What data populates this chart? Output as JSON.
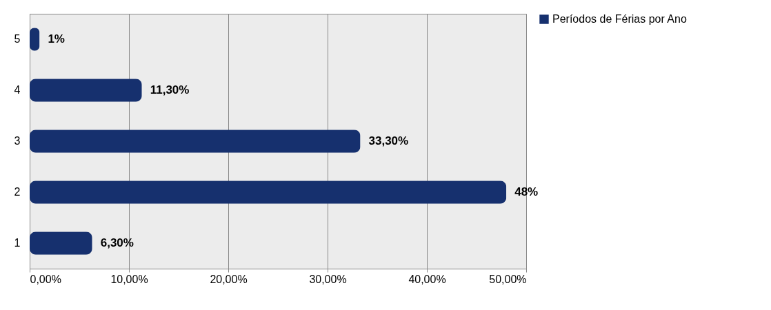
{
  "chart_data": {
    "type": "bar",
    "orientation": "horizontal",
    "categories": [
      "5",
      "4",
      "3",
      "2",
      "1"
    ],
    "series": [
      {
        "name": "Períodos de Férias por Ano",
        "color": "#16306e",
        "values": [
          1,
          11.3,
          33.3,
          48,
          6.3
        ],
        "value_labels": [
          "1%",
          "11,30%",
          "33,30%",
          "48%",
          "6,30%"
        ]
      }
    ],
    "xlim": [
      0,
      50
    ],
    "xticks": [
      {
        "value": 0,
        "label": "0,00%"
      },
      {
        "value": 10,
        "label": "10,00%"
      },
      {
        "value": 20,
        "label": "20,00%"
      },
      {
        "value": 30,
        "label": "30,00%"
      },
      {
        "value": 40,
        "label": "40,00%"
      },
      {
        "value": 50,
        "label": "50,00%"
      }
    ],
    "grid": "x",
    "legend": "right"
  }
}
